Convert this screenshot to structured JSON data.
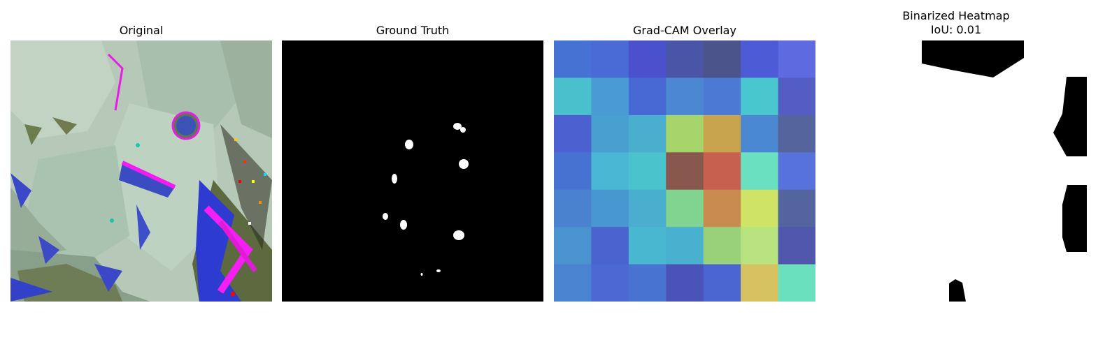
{
  "panels": {
    "original": {
      "title": "Original"
    },
    "ground_truth": {
      "title": "Ground Truth"
    },
    "gradcam": {
      "title": "Grad-CAM Overlay",
      "grid_colors": [
        [
          "#4672d3",
          "#4a6ad6",
          "#4b51cc",
          "#4b55a8",
          "#4c548c",
          "#4d5bd6",
          "#5e6be0"
        ],
        [
          "#4ac0cc",
          "#4a9ad3",
          "#4868d3",
          "#4c88d1",
          "#4c79d4",
          "#4ac6cf",
          "#535dc4"
        ],
        [
          "#4d60cf",
          "#48a0d1",
          "#4aaecf",
          "#a7d36b",
          "#c7a44d",
          "#4a88d1",
          "#56649e"
        ],
        [
          "#4872d2",
          "#4ab7d4",
          "#4ac3cc",
          "#88574e",
          "#c86050",
          "#6ae0c0",
          "#5872dc"
        ],
        [
          "#4b82cf",
          "#4897d0",
          "#4aaecf",
          "#80d48f",
          "#c98a4f",
          "#cfe367",
          "#54649f"
        ],
        [
          "#4a93cf",
          "#4a63cf",
          "#4ab7d0",
          "#4ab0d0",
          "#98d17a",
          "#b8e37e",
          "#5057ac"
        ],
        [
          "#4a84d1",
          "#4c69d1",
          "#4873d1",
          "#4b53b8",
          "#4a64d0",
          "#d6c260",
          "#6ae0bc"
        ]
      ]
    },
    "binarized": {
      "title": "Binarized Heatmap\nIoU: 0.01"
    }
  }
}
